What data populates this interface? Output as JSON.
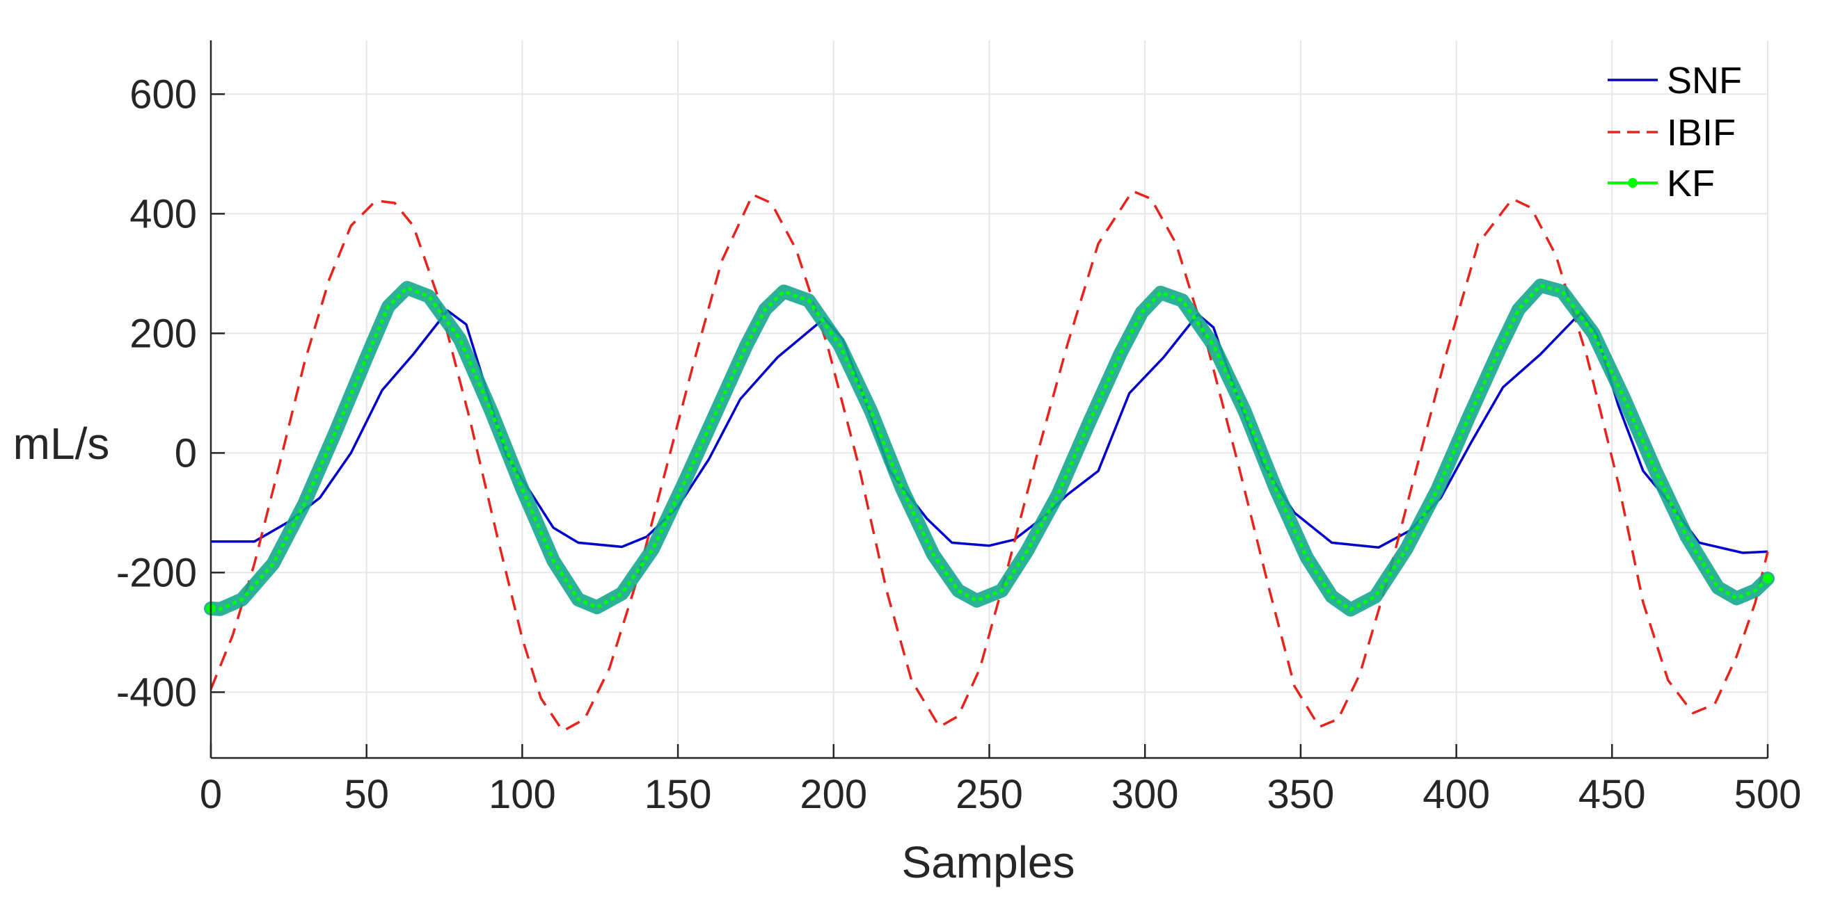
{
  "chart_data": {
    "type": "line",
    "title": "",
    "xlabel": "Samples",
    "ylabel": "mL/s",
    "xlim": [
      0,
      500
    ],
    "ylim": [
      -510,
      690
    ],
    "xticks": [
      0,
      50,
      100,
      150,
      200,
      250,
      300,
      350,
      400,
      450,
      500
    ],
    "yticks": [
      -400,
      -200,
      0,
      200,
      400,
      600
    ],
    "xtick_labels": [
      "0",
      "50",
      "100",
      "150",
      "200",
      "250",
      "300",
      "350",
      "400",
      "450",
      "500"
    ],
    "ytick_labels": [
      "-400",
      "-200",
      "0",
      "200",
      "400",
      "600"
    ],
    "grid": true,
    "legend_position": "top-right",
    "series": [
      {
        "name": "SNF",
        "color": "#0000cc",
        "style": "solid",
        "points": [
          [
            0,
            -148
          ],
          [
            14,
            -148
          ],
          [
            25,
            -115
          ],
          [
            35,
            -75
          ],
          [
            45,
            0
          ],
          [
            55,
            105
          ],
          [
            65,
            165
          ],
          [
            76,
            238
          ],
          [
            82,
            215
          ],
          [
            90,
            80
          ],
          [
            95,
            -5
          ],
          [
            102,
            -60
          ],
          [
            110,
            -125
          ],
          [
            118,
            -150
          ],
          [
            132,
            -157
          ],
          [
            140,
            -140
          ],
          [
            150,
            -90
          ],
          [
            160,
            -10
          ],
          [
            170,
            90
          ],
          [
            182,
            160
          ],
          [
            197,
            225
          ],
          [
            203,
            190
          ],
          [
            210,
            90
          ],
          [
            218,
            -30
          ],
          [
            230,
            -110
          ],
          [
            238,
            -150
          ],
          [
            250,
            -155
          ],
          [
            258,
            -145
          ],
          [
            268,
            -105
          ],
          [
            275,
            -70
          ],
          [
            285,
            -30
          ],
          [
            295,
            100
          ],
          [
            306,
            160
          ],
          [
            317,
            232
          ],
          [
            322,
            210
          ],
          [
            330,
            90
          ],
          [
            338,
            -20
          ],
          [
            348,
            -100
          ],
          [
            360,
            -150
          ],
          [
            375,
            -158
          ],
          [
            385,
            -130
          ],
          [
            395,
            -75
          ],
          [
            405,
            20
          ],
          [
            415,
            110
          ],
          [
            427,
            165
          ],
          [
            440,
            235
          ],
          [
            445,
            200
          ],
          [
            452,
            80
          ],
          [
            460,
            -30
          ],
          [
            468,
            -80
          ],
          [
            478,
            -150
          ],
          [
            492,
            -167
          ],
          [
            500,
            -165
          ]
        ]
      },
      {
        "name": "IBIF",
        "color": "#e8231c",
        "style": "dashed",
        "points": [
          [
            0,
            -395
          ],
          [
            7,
            -305
          ],
          [
            14,
            -185
          ],
          [
            22,
            -20
          ],
          [
            30,
            150
          ],
          [
            38,
            290
          ],
          [
            45,
            380
          ],
          [
            53,
            422
          ],
          [
            59,
            418
          ],
          [
            65,
            380
          ],
          [
            73,
            260
          ],
          [
            83,
            60
          ],
          [
            92,
            -140
          ],
          [
            100,
            -310
          ],
          [
            106,
            -410
          ],
          [
            113,
            -465
          ],
          [
            120,
            -445
          ],
          [
            128,
            -360
          ],
          [
            137,
            -210
          ],
          [
            146,
            -30
          ],
          [
            155,
            150
          ],
          [
            164,
            320
          ],
          [
            174,
            432
          ],
          [
            180,
            418
          ],
          [
            188,
            340
          ],
          [
            198,
            180
          ],
          [
            208,
            -20
          ],
          [
            217,
            -230
          ],
          [
            225,
            -380
          ],
          [
            234,
            -458
          ],
          [
            240,
            -440
          ],
          [
            247,
            -360
          ],
          [
            256,
            -190
          ],
          [
            265,
            -10
          ],
          [
            275,
            180
          ],
          [
            285,
            350
          ],
          [
            296,
            438
          ],
          [
            302,
            425
          ],
          [
            310,
            350
          ],
          [
            320,
            180
          ],
          [
            330,
            -20
          ],
          [
            340,
            -230
          ],
          [
            348,
            -390
          ],
          [
            356,
            -458
          ],
          [
            362,
            -445
          ],
          [
            369,
            -370
          ],
          [
            378,
            -210
          ],
          [
            387,
            -30
          ],
          [
            397,
            170
          ],
          [
            407,
            350
          ],
          [
            418,
            425
          ],
          [
            424,
            410
          ],
          [
            432,
            330
          ],
          [
            442,
            160
          ],
          [
            452,
            -50
          ],
          [
            460,
            -250
          ],
          [
            468,
            -380
          ],
          [
            476,
            -435
          ],
          [
            483,
            -420
          ],
          [
            490,
            -340
          ],
          [
            496,
            -250
          ],
          [
            500,
            -165
          ]
        ]
      },
      {
        "name": "KF",
        "color": "#00ff00",
        "band_color": "#13a88c",
        "style": "solid-marker",
        "points": [
          [
            0,
            -260
          ],
          [
            3,
            -261
          ],
          [
            10,
            -245
          ],
          [
            20,
            -185
          ],
          [
            30,
            -85
          ],
          [
            40,
            35
          ],
          [
            50,
            160
          ],
          [
            57,
            245
          ],
          [
            63,
            276
          ],
          [
            70,
            262
          ],
          [
            80,
            190
          ],
          [
            90,
            70
          ],
          [
            100,
            -60
          ],
          [
            110,
            -180
          ],
          [
            118,
            -245
          ],
          [
            124,
            -258
          ],
          [
            132,
            -235
          ],
          [
            142,
            -160
          ],
          [
            152,
            -50
          ],
          [
            162,
            65
          ],
          [
            172,
            180
          ],
          [
            178,
            240
          ],
          [
            184,
            270
          ],
          [
            192,
            255
          ],
          [
            202,
            180
          ],
          [
            212,
            70
          ],
          [
            222,
            -60
          ],
          [
            232,
            -170
          ],
          [
            240,
            -230
          ],
          [
            246,
            -247
          ],
          [
            254,
            -230
          ],
          [
            262,
            -165
          ],
          [
            272,
            -70
          ],
          [
            282,
            50
          ],
          [
            292,
            165
          ],
          [
            299,
            235
          ],
          [
            305,
            268
          ],
          [
            312,
            255
          ],
          [
            322,
            180
          ],
          [
            332,
            70
          ],
          [
            342,
            -60
          ],
          [
            352,
            -175
          ],
          [
            360,
            -240
          ],
          [
            366,
            -262
          ],
          [
            374,
            -240
          ],
          [
            384,
            -160
          ],
          [
            394,
            -60
          ],
          [
            404,
            60
          ],
          [
            414,
            175
          ],
          [
            420,
            240
          ],
          [
            427,
            280
          ],
          [
            434,
            270
          ],
          [
            444,
            200
          ],
          [
            454,
            90
          ],
          [
            464,
            -30
          ],
          [
            474,
            -140
          ],
          [
            484,
            -225
          ],
          [
            490,
            -243
          ],
          [
            496,
            -230
          ],
          [
            500,
            -210
          ]
        ]
      }
    ]
  }
}
